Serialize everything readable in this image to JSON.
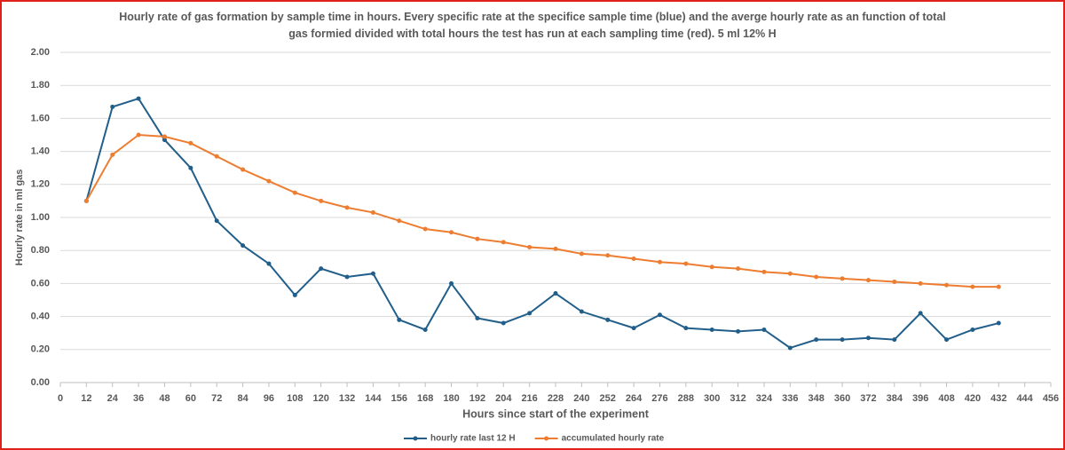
{
  "chart_data": {
    "type": "line",
    "title": "Hourly rate of gas formation by sample time in hours. Every specific rate at the specifice sample time (blue)  and the averge hourly rate as an function of total gas formied divided with total hours the test has run at each sampling time (red). 5 ml 12% H",
    "x_label": "Hours since start of the experiment",
    "y_label": "Hourly rate in ml gas",
    "x": [
      12,
      24,
      36,
      48,
      60,
      72,
      84,
      96,
      108,
      120,
      132,
      144,
      156,
      168,
      180,
      192,
      204,
      216,
      228,
      240,
      252,
      264,
      276,
      288,
      300,
      312,
      324,
      336,
      348,
      360,
      372,
      384,
      396,
      408,
      420,
      432
    ],
    "series": [
      {
        "name": "hourly rate last 12 H",
        "color": "#215f8a",
        "values": [
          1.1,
          1.67,
          1.72,
          1.47,
          1.3,
          0.98,
          0.83,
          0.72,
          0.53,
          0.69,
          0.64,
          0.66,
          0.38,
          0.32,
          0.6,
          0.39,
          0.36,
          0.42,
          0.54,
          0.43,
          0.38,
          0.33,
          0.41,
          0.33,
          0.32,
          0.31,
          0.32,
          0.21,
          0.26,
          0.26,
          0.27,
          0.26,
          0.42,
          0.26,
          0.32,
          0.36
        ]
      },
      {
        "name": "accumulated hourly rate",
        "color": "#ed7d31",
        "values": [
          1.1,
          1.38,
          1.5,
          1.49,
          1.45,
          1.37,
          1.29,
          1.22,
          1.15,
          1.1,
          1.06,
          1.03,
          0.98,
          0.93,
          0.91,
          0.87,
          0.85,
          0.82,
          0.81,
          0.78,
          0.77,
          0.75,
          0.73,
          0.72,
          0.7,
          0.69,
          0.67,
          0.66,
          0.64,
          0.63,
          0.62,
          0.61,
          0.6,
          0.59,
          0.58,
          0.58
        ]
      }
    ],
    "xlim": [
      0,
      456
    ],
    "xticks": [
      0,
      12,
      24,
      36,
      48,
      60,
      72,
      84,
      96,
      108,
      120,
      132,
      144,
      156,
      168,
      180,
      192,
      204,
      216,
      228,
      240,
      252,
      264,
      276,
      288,
      300,
      312,
      324,
      336,
      348,
      360,
      372,
      384,
      396,
      408,
      420,
      432,
      444,
      456
    ],
    "ylim": [
      0,
      2
    ],
    "yticks": [
      {
        "value": 0,
        "label": "0.00"
      },
      {
        "value": 0.2,
        "label": "0.20"
      },
      {
        "value": 0.4,
        "label": "0.40"
      },
      {
        "value": 0.6,
        "label": "0.60"
      },
      {
        "value": 0.8,
        "label": "0.80"
      },
      {
        "value": 1,
        "label": "1.00"
      },
      {
        "value": 1.2,
        "label": "1.20"
      },
      {
        "value": 1.4,
        "label": "1.40"
      },
      {
        "value": 1.6,
        "label": "1.60"
      },
      {
        "value": 1.8,
        "label": "1.80"
      },
      {
        "value": 2,
        "label": "2.00"
      }
    ],
    "grid": true,
    "legend": "bottom"
  }
}
